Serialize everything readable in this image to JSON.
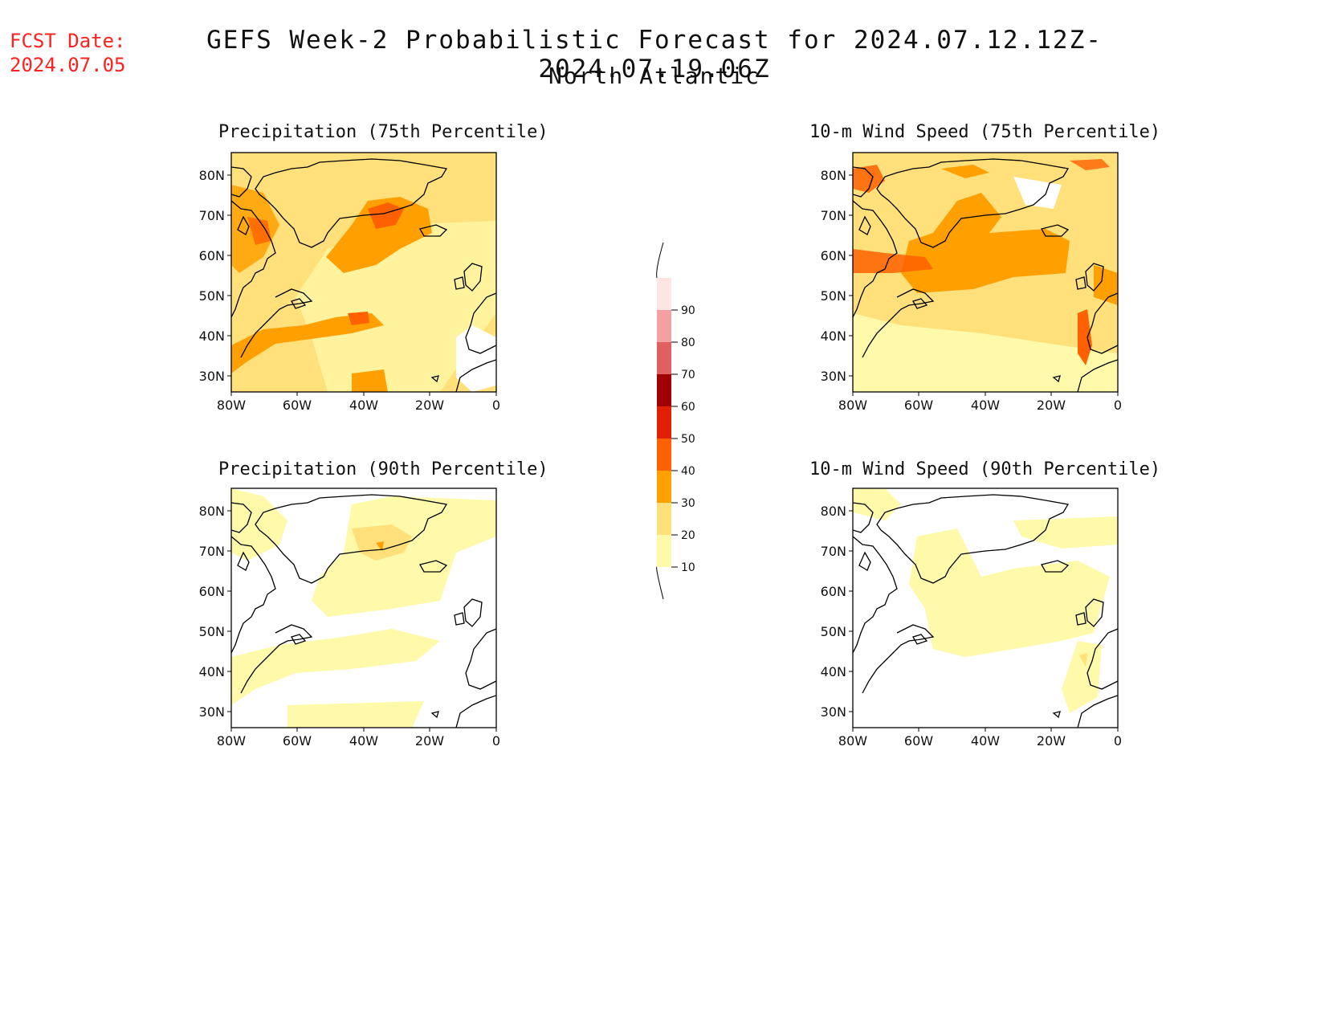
{
  "header": {
    "fcst_label": "FCST Date:",
    "fcst_date": "2024.07.05",
    "title": "GEFS Week-2 Probabilistic Forecast for 2024.07.12.12Z-2024.07.19.06Z",
    "region": "North Atlantic"
  },
  "axes": {
    "lat_labels": [
      "80N",
      "70N",
      "60N",
      "50N",
      "40N",
      "30N"
    ],
    "lon_labels": [
      "80W",
      "60W",
      "40W",
      "20W",
      "0"
    ]
  },
  "panels": [
    {
      "title": "Precipitation (75th Percentile)"
    },
    {
      "title": "10-m Wind Speed (75th Percentile)"
    },
    {
      "title": "Precipitation (90th Percentile)"
    },
    {
      "title": "10-m Wind Speed (90th Percentile)"
    }
  ],
  "legend": {
    "levels": [
      "10",
      "20",
      "30",
      "40",
      "50",
      "60",
      "70",
      "80",
      "90"
    ],
    "colors": [
      "#fffaaa",
      "#ffe07a",
      "#ffa000",
      "#ff6000",
      "#e02000",
      "#a00000",
      "#e06060",
      "#f4a0a0",
      "#ffe4e4"
    ]
  },
  "chart_data": {
    "type": "heatmap",
    "x_range": [
      "80W",
      "0"
    ],
    "y_range": [
      "25N",
      "85N"
    ],
    "scale": [
      "10",
      "20",
      "30",
      "40",
      "50",
      "60",
      "70",
      "80",
      "90"
    ]
  }
}
